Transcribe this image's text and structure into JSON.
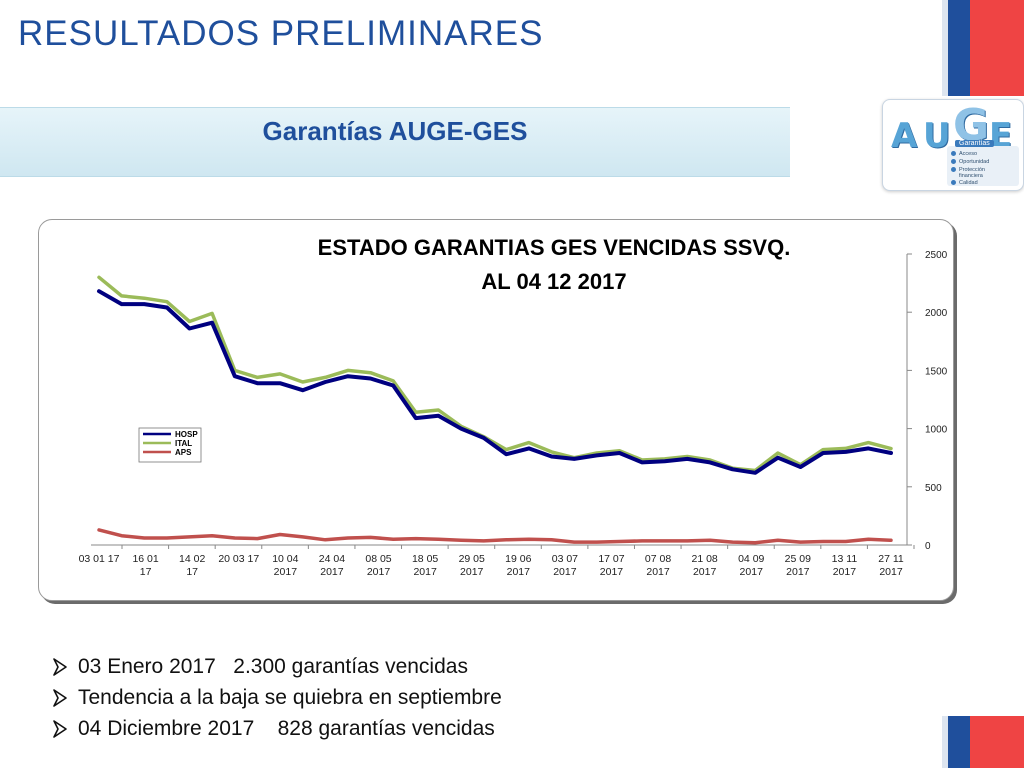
{
  "slide": {
    "title": "RESULTADOS PRELIMINARES",
    "subtitle": "Garantías AUGE-GES"
  },
  "logo": {
    "letters": [
      "A",
      "U",
      "G",
      "E"
    ],
    "panel_title": "Garantías",
    "items": [
      "Acceso",
      "Oportunidad",
      "Protección",
      "financiera",
      "Calidad"
    ]
  },
  "chart_data": {
    "type": "line",
    "title_lines": [
      "ESTADO GARANTIAS  GES VENCIDAS SSVQ.",
      "AL 04 12 2017"
    ],
    "y_axis_position": "right",
    "ylim": [
      0,
      2500
    ],
    "yticks": [
      0,
      500,
      1000,
      1500,
      2000,
      2500
    ],
    "grid": false,
    "legend_placement": "middle-left",
    "x_tick_labels": [
      [
        "03 01 17"
      ],
      [
        "16 01",
        "17"
      ],
      [
        "14 02",
        "17"
      ],
      [
        "20 03 17"
      ],
      [
        "10 04",
        "2017"
      ],
      [
        "24 04",
        "2017"
      ],
      [
        "08 05",
        "2017"
      ],
      [
        "18 05",
        "2017"
      ],
      [
        "29 05",
        "2017"
      ],
      [
        "19 06",
        "2017"
      ],
      [
        "03 07",
        "2017"
      ],
      [
        "17 07",
        "2017"
      ],
      [
        "07 08",
        "2017"
      ],
      [
        "21 08",
        "2017"
      ],
      [
        "04 09",
        "2017"
      ],
      [
        "25 09",
        "2017"
      ],
      [
        "13  11",
        "2017"
      ],
      [
        "27 11",
        "2017"
      ]
    ],
    "series": [
      {
        "name": "HOSP",
        "color": "#000080",
        "values": [
          2180,
          2070,
          2070,
          2040,
          1860,
          1910,
          1450,
          1390,
          1390,
          1330,
          1400,
          1450,
          1430,
          1370,
          1090,
          1110,
          1000,
          920,
          780,
          830,
          760,
          740,
          770,
          790,
          710,
          720,
          740,
          710,
          650,
          620,
          750,
          670,
          790,
          800,
          830,
          790
        ]
      },
      {
        "name": "ITAL",
        "color": "#9bbb59",
        "values": [
          2300,
          2140,
          2120,
          2090,
          1920,
          1990,
          1500,
          1440,
          1470,
          1400,
          1440,
          1500,
          1480,
          1410,
          1140,
          1160,
          1020,
          930,
          820,
          880,
          800,
          750,
          790,
          810,
          730,
          740,
          760,
          730,
          660,
          640,
          790,
          690,
          820,
          830,
          880,
          828
        ]
      },
      {
        "name": "APS",
        "color": "#c0504d",
        "values": [
          130,
          80,
          60,
          60,
          70,
          80,
          60,
          55,
          90,
          70,
          45,
          60,
          65,
          50,
          55,
          50,
          40,
          35,
          45,
          50,
          45,
          25,
          25,
          30,
          35,
          35,
          35,
          40,
          25,
          20,
          40,
          25,
          30,
          30,
          50,
          40
        ]
      }
    ]
  },
  "bullets": [
    "03 Enero 2017   2.300 garantías vencidas",
    "Tendencia a la baja se quiebra en septiembre",
    "04 Diciembre 2017    828 garantías vencidas"
  ]
}
